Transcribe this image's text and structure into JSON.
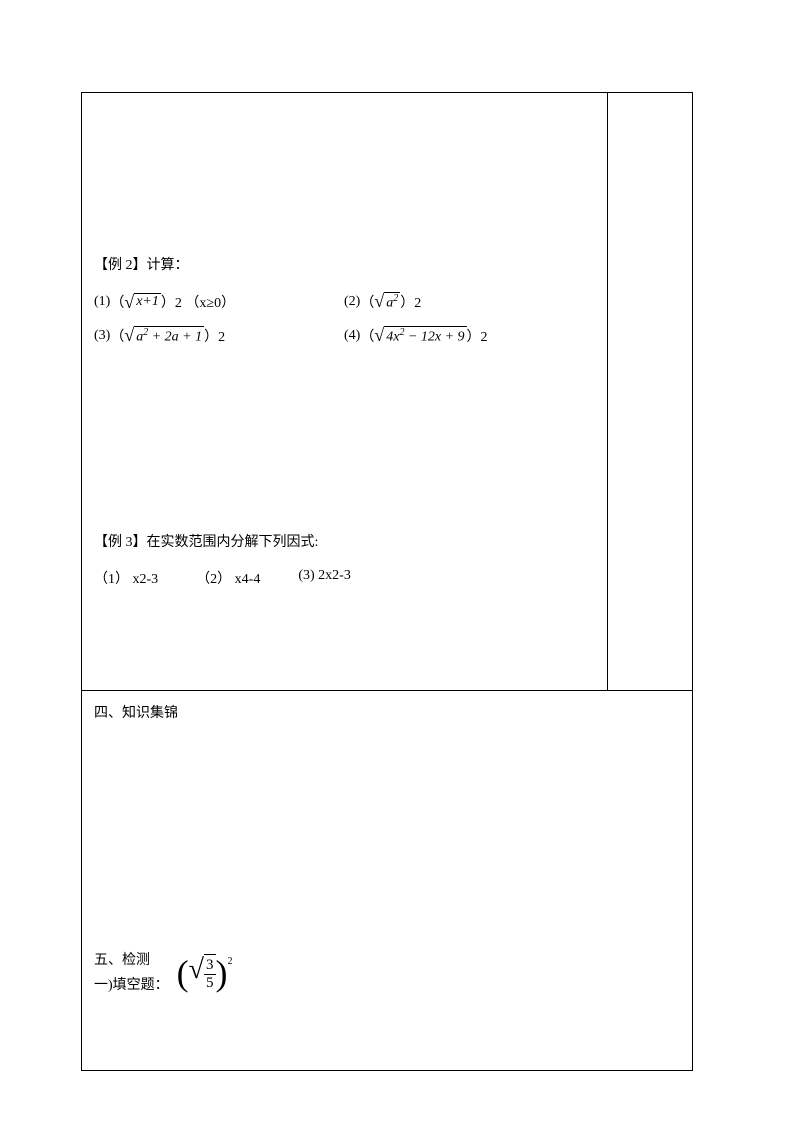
{
  "example2": {
    "title": "【例 2】计算：",
    "items": [
      {
        "label": "(1)",
        "prefix": "（",
        "radicand": "x+1",
        "sup": "",
        "suffix": "）2 （x≥0）"
      },
      {
        "label": "(2)",
        "prefix": "（",
        "radicand": "a",
        "sup": "2",
        "suffix": " ）2"
      },
      {
        "label": "(3)",
        "prefix": "（",
        "radicand": "a",
        "sup": "2",
        "radicand_rest": " + 2a + 1",
        "suffix": "）2"
      },
      {
        "label": "(4)",
        "prefix": "（",
        "radicand": "4x",
        "sup": "2",
        "radicand_rest": " − 12x + 9",
        "suffix": "）2"
      }
    ]
  },
  "example3": {
    "title": "【例 3】在实数范围内分解下列因式:",
    "items": [
      {
        "label": "（1）",
        "expr": "x2-3"
      },
      {
        "label": "（2）",
        "expr": "x4-4"
      },
      {
        "label": "(3)",
        "expr": " 2x2-3"
      }
    ]
  },
  "section4": {
    "title": "四、知识集锦"
  },
  "section5": {
    "title": "五、检测",
    "sub": "一)填空题：",
    "frac": {
      "num": "3",
      "den": "5"
    },
    "exp": "2"
  }
}
